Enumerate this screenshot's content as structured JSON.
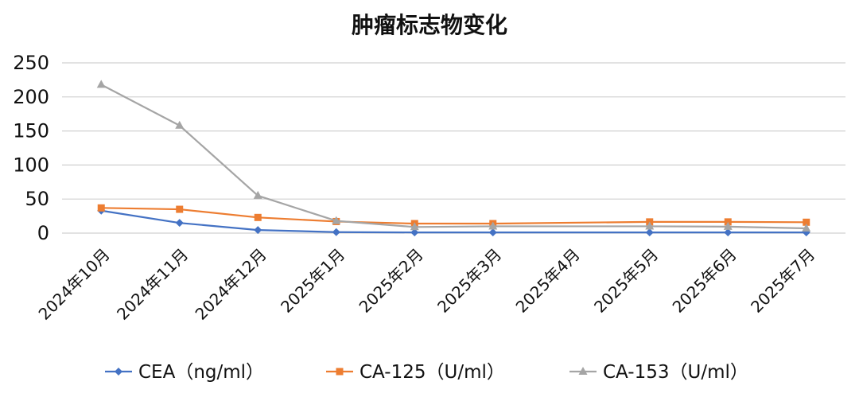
{
  "chart_data": {
    "type": "line",
    "title": "肿瘤标志物变化",
    "xlabel": "",
    "ylabel": "",
    "ylim": [
      0,
      250
    ],
    "yticks": [
      0,
      50,
      100,
      150,
      200,
      250
    ],
    "grid": true,
    "legend_position": "bottom",
    "categories": [
      "2024年10月",
      "2024年11月",
      "2024年12月",
      "2025年1月",
      "2025年2月",
      "2025年3月",
      "2025年4月",
      "2025年5月",
      "2025年6月",
      "2025年7月"
    ],
    "series": [
      {
        "name": "CEA（ng/ml）",
        "color": "#4472C4",
        "marker": "diamond",
        "values": [
          33,
          15,
          4.5,
          1.5,
          1.0,
          1.0,
          null,
          1.0,
          1.0,
          1.0
        ]
      },
      {
        "name": "CA-125（U/ml）",
        "color": "#ED7D31",
        "marker": "square",
        "values": [
          37,
          35,
          23,
          17,
          14,
          14,
          null,
          16.5,
          16.5,
          16
        ]
      },
      {
        "name": "CA-153（U/ml）",
        "color": "#A5A5A5",
        "marker": "triangle",
        "values": [
          218,
          158,
          55,
          18,
          9,
          10,
          null,
          10,
          9.5,
          7
        ]
      }
    ]
  }
}
